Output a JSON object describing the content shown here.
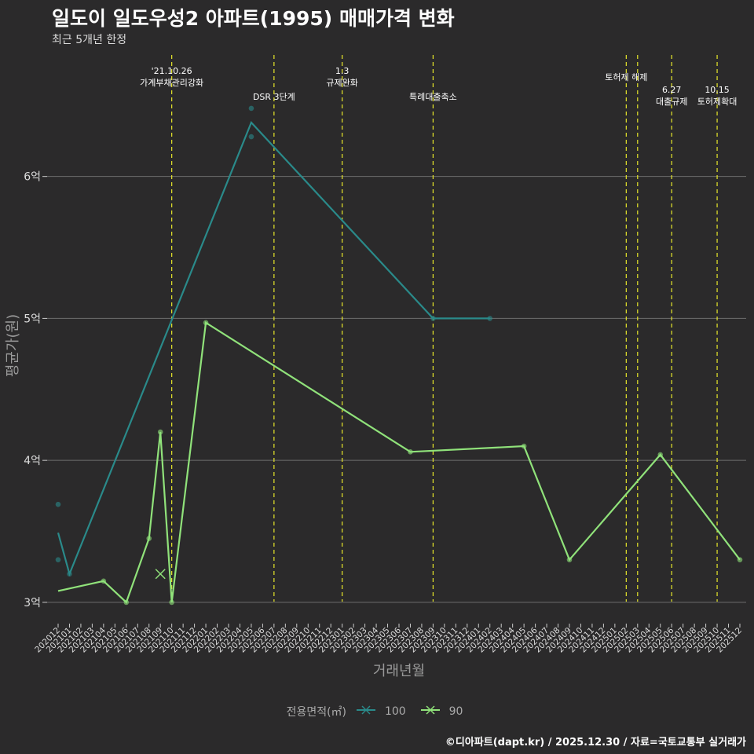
{
  "chart_data": {
    "type": "line",
    "title": "일도이 일도우성2 아파트(1995) 매매가격 변화",
    "subtitle": "최근 5개년 한정",
    "xlabel": "거래년월",
    "ylabel": "평균가(원)",
    "ylim": [
      2.85,
      6.9
    ],
    "yticks": [
      3,
      4,
      5,
      6
    ],
    "ytick_labels": [
      "3억",
      "4억",
      "5억",
      "6억"
    ],
    "categories": [
      "202012",
      "202101",
      "202102",
      "202103",
      "202104",
      "202105",
      "202106",
      "202107",
      "202108",
      "202109",
      "202110",
      "202111",
      "202112",
      "202201",
      "202202",
      "202203",
      "202204",
      "202205",
      "202206",
      "202207",
      "202208",
      "202209",
      "202210",
      "202211",
      "202212",
      "202301",
      "202302",
      "202303",
      "202304",
      "202305",
      "202306",
      "202307",
      "202308",
      "202309",
      "202310",
      "202311",
      "202312",
      "202401",
      "202402",
      "202403",
      "202404",
      "202405",
      "202406",
      "202407",
      "202408",
      "202409",
      "202410",
      "202411",
      "202412",
      "202501",
      "202502",
      "202503",
      "202504",
      "202505",
      "202506",
      "202507",
      "202508",
      "202509",
      "202510",
      "202511",
      "202512"
    ],
    "series": [
      {
        "name": "100",
        "color": "#2a8a8a",
        "line": [
          [
            0,
            3.49
          ],
          [
            1,
            3.2
          ],
          [
            17,
            6.38
          ],
          [
            33,
            5.0
          ],
          [
            38,
            5.0
          ]
        ],
        "points": [
          [
            0,
            3.69
          ],
          [
            0,
            3.3
          ],
          [
            1,
            3.2
          ],
          [
            17,
            6.48
          ],
          [
            17,
            6.28
          ],
          [
            33,
            5.0
          ],
          [
            38,
            5.0
          ]
        ]
      },
      {
        "name": "90",
        "color": "#90e27a",
        "line": [
          [
            0,
            3.08
          ],
          [
            4,
            3.15
          ],
          [
            6,
            3.0
          ],
          [
            8,
            3.45
          ],
          [
            9,
            4.2
          ],
          [
            10,
            3.0
          ],
          [
            13,
            4.97
          ],
          [
            31,
            4.06
          ],
          [
            41,
            4.1
          ],
          [
            45,
            3.3
          ],
          [
            53,
            4.04
          ],
          [
            60,
            3.3
          ]
        ],
        "points": [
          [
            4,
            3.15
          ],
          [
            6,
            3.0
          ],
          [
            8,
            3.45
          ],
          [
            9,
            4.2
          ],
          [
            10,
            3.0
          ],
          [
            13,
            4.97
          ],
          [
            31,
            4.06
          ],
          [
            41,
            4.1
          ],
          [
            45,
            3.3
          ],
          [
            53,
            4.04
          ],
          [
            60,
            3.3
          ]
        ],
        "cross_marks": [
          [
            9,
            3.2
          ]
        ]
      }
    ],
    "events": [
      {
        "index": 10,
        "label": "'21.10.26\n가계부채관리강화"
      },
      {
        "index": 19,
        "label": "DSR 3단계"
      },
      {
        "index": 25,
        "label": "1.3\n규제완화"
      },
      {
        "index": 33,
        "label": "특례대출축소"
      },
      {
        "index": 50,
        "label": "토허제 해제"
      },
      {
        "index": 51,
        "label": ""
      },
      {
        "index": 54,
        "label": "6.27\n대출규제"
      },
      {
        "index": 58,
        "label": "10.15\n토허제확대"
      }
    ],
    "legend": {
      "title": "전용면적(㎡)",
      "entries": [
        "100",
        "90"
      ]
    }
  },
  "caption": "©디아파트(dapt.kr) / 2025.12.30 / 자료=국토교통부 실거래가",
  "colors": {
    "background": "#2b2a2b",
    "grid": "#6e6e6e",
    "event_line": "#e8e82a",
    "series_100": "#2a8a8a",
    "series_90": "#90e27a"
  }
}
